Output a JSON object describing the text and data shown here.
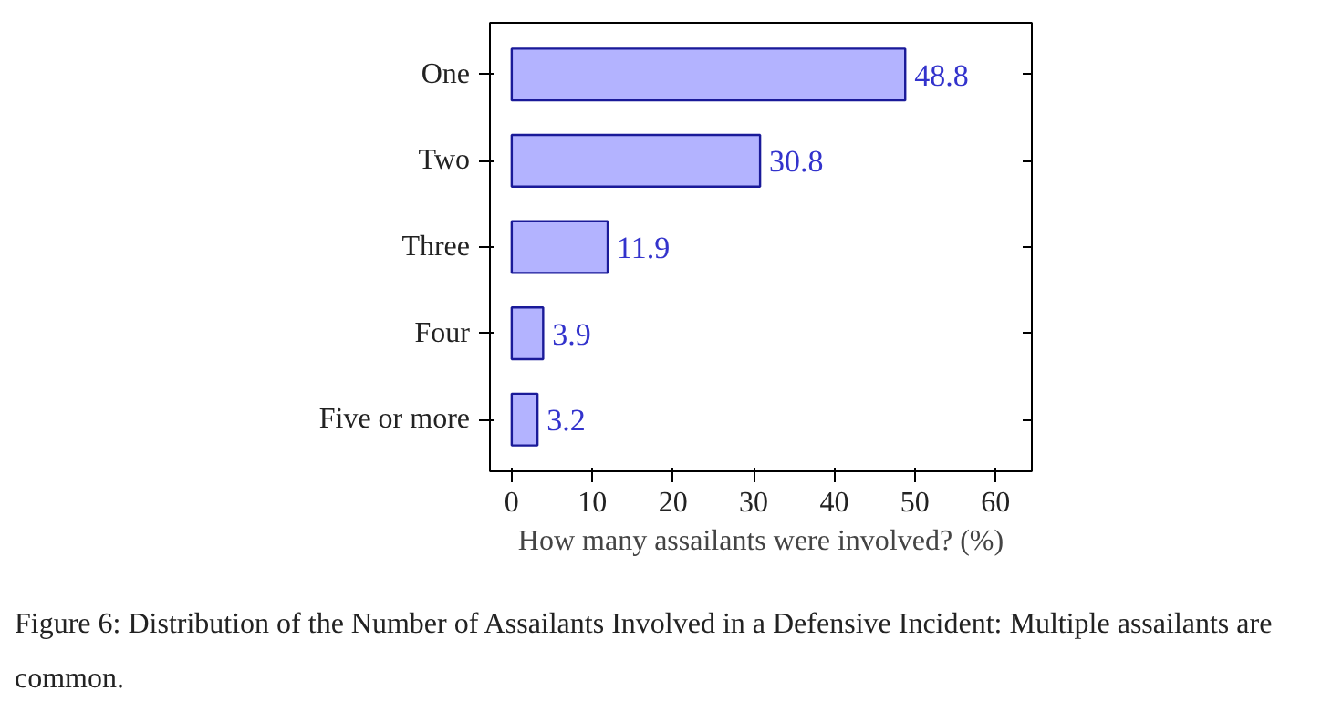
{
  "chart_data": {
    "type": "bar",
    "orientation": "horizontal",
    "categories": [
      "One",
      "Two",
      "Three",
      "Four",
      "Five or more"
    ],
    "values": [
      48.8,
      30.8,
      11.9,
      3.9,
      3.2
    ],
    "color": "#b3b3ff",
    "data_labels": true,
    "xlabel": "How many assailants were involved? (%)",
    "xlim": [
      -2.7,
      64.5
    ],
    "xticks": [
      0,
      10,
      20,
      30,
      40,
      50,
      60
    ],
    "grid": false,
    "annotations": [
      "Figure 6: Distribution of the Number of Assailants Involved in a Defensive Incident: Multiple assailants are common."
    ]
  }
}
